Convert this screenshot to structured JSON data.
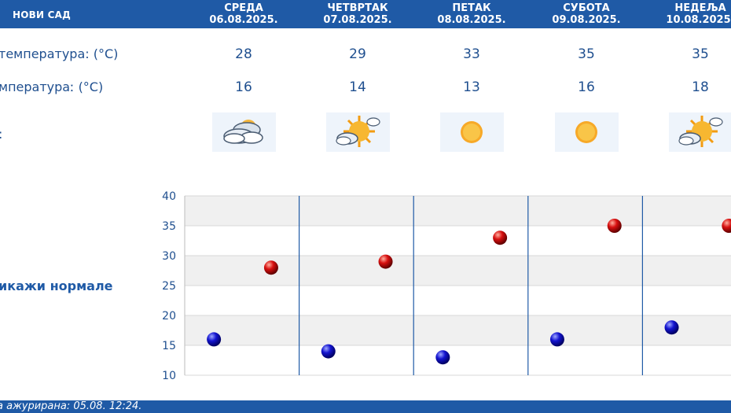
{
  "header": {
    "city": "НОВИ САД",
    "days": [
      {
        "name": "СРЕДА",
        "date": "06.08.2025."
      },
      {
        "name": "ЧЕТВРТАК",
        "date": "07.08.2025."
      },
      {
        "name": "ПЕТАК",
        "date": "08.08.2025."
      },
      {
        "name": "СУБОТА",
        "date": "09.08.2025."
      },
      {
        "name": "НЕДЕЉА",
        "date": "10.08.2025."
      }
    ]
  },
  "rows": {
    "max_label": "температура: (°C)",
    "min_label": "мператураː (°C)",
    "weather_label": ":",
    "max": [
      "28",
      "29",
      "33",
      "35",
      "35"
    ],
    "min": [
      "16",
      "14",
      "13",
      "16",
      "18"
    ],
    "icons": [
      "partly-cloudy-icon",
      "mostly-sunny-icon",
      "sunny-icon",
      "sunny-icon",
      "mostly-sunny-icon"
    ]
  },
  "normals_link": "икажи нормале",
  "chart_data": {
    "type": "scatter",
    "categories": [
      "06.08.2025.",
      "07.08.2025.",
      "08.08.2025.",
      "09.08.2025.",
      "10.08.2025."
    ],
    "series": [
      {
        "values": [
          16,
          14,
          13,
          16,
          18
        ],
        "color": "#1010c8"
      },
      {
        "values": [
          28,
          29,
          33,
          35,
          35
        ],
        "color": "#d01010"
      }
    ],
    "ylim": [
      10,
      40
    ],
    "yticks": [
      "10",
      "15",
      "20",
      "25",
      "30",
      "35",
      "40"
    ],
    "grid": true,
    "band_color": "#f0f0f0",
    "divider_color": "#1f5aa6"
  },
  "footer": {
    "text": "а ажурирана:  05.08.  12:24."
  }
}
